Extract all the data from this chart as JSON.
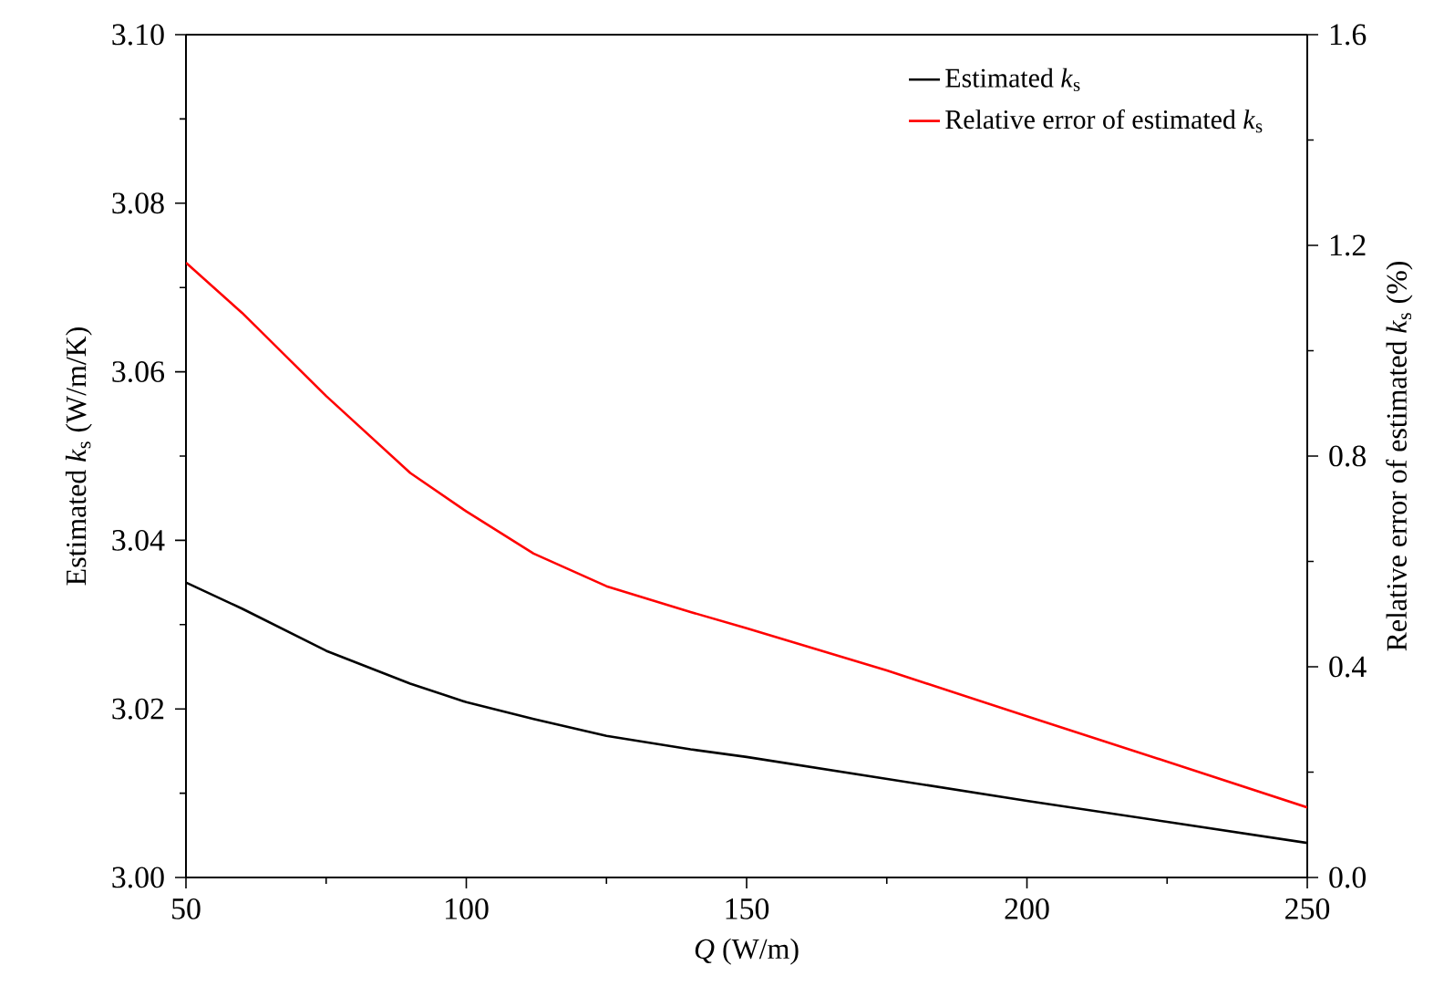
{
  "chart_data": {
    "type": "line",
    "xlabel": "*Q* (W/m)",
    "ylabel": "Estimated *k*$_{s}$ (W/m/K)",
    "y2label": "Relative error of estimated *k*$_{s}$ (%)",
    "x": [
      50,
      60,
      75,
      90,
      100,
      112,
      125,
      140,
      150,
      175,
      200,
      225,
      250
    ],
    "series": [
      {
        "name": "Estimated *k*$_{s}$",
        "color": "#000000",
        "values": [
          3.035,
          3.0319,
          3.0269,
          3.023,
          3.0208,
          3.0188,
          3.0168,
          3.0152,
          3.0143,
          3.0117,
          3.0091,
          3.0066,
          3.0041
        ]
      },
      {
        "name": "Relative error of estimated *k*$_{s}$",
        "color": "#ff0000",
        "axis": "y2",
        "values": [
          1.167,
          1.072,
          0.914,
          0.768,
          0.695,
          0.615,
          0.553,
          0.504,
          0.473,
          0.393,
          0.306,
          0.22,
          0.133
        ]
      }
    ],
    "xlim": [
      50,
      250
    ],
    "xticks": [
      50,
      100,
      150,
      200,
      250
    ],
    "ylim": [
      3.0,
      3.1
    ],
    "yticks": [
      {
        "value": 3.0,
        "label": "3.00"
      },
      {
        "value": 3.02,
        "label": "3.02"
      },
      {
        "value": 3.04,
        "label": "3.04"
      },
      {
        "value": 3.06,
        "label": "3.06"
      },
      {
        "value": 3.08,
        "label": "3.08"
      },
      {
        "value": 3.1,
        "label": "3.10"
      }
    ],
    "y2lim": [
      0,
      1.6
    ],
    "y2ticks": [
      {
        "value": 0,
        "label": "0.0"
      },
      0.4,
      0.8,
      1.2,
      1.6
    ],
    "legend": "top right",
    "grid": false,
    "marker": "none",
    "line_style": "solid"
  }
}
